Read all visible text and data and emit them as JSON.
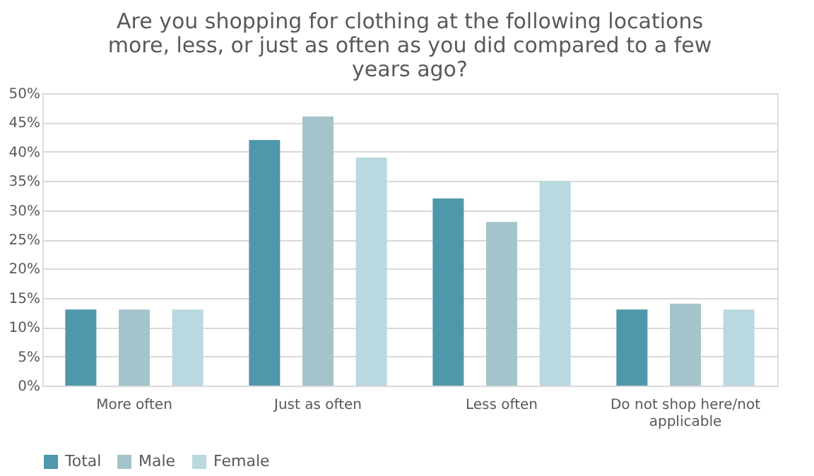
{
  "chart_data": {
    "type": "bar",
    "title": "Are you shopping for clothing at the following locations more, less, or just as often as you did compared to a few years ago?",
    "categories": [
      "More often",
      "Just as often",
      "Less often",
      "Do not shop here/not applicable"
    ],
    "series": [
      {
        "name": "Total",
        "color": "#4f97ab",
        "values": [
          13,
          42,
          32,
          13
        ]
      },
      {
        "name": "Male",
        "color": "#a5c3cb",
        "values": [
          13,
          46,
          28,
          14
        ]
      },
      {
        "name": "Female",
        "color": "#b9d8df",
        "values": [
          13,
          39,
          35,
          13
        ]
      }
    ],
    "ylim": [
      0,
      50
    ],
    "yticks": [
      {
        "value": 0,
        "label": "0%"
      },
      {
        "value": 5,
        "label": "5%"
      },
      {
        "value": 10,
        "label": "10%"
      },
      {
        "value": 15,
        "label": "15%"
      },
      {
        "value": 20,
        "label": "20%"
      },
      {
        "value": 25,
        "label": "25%"
      },
      {
        "value": 30,
        "label": "30%"
      },
      {
        "value": 35,
        "label": "35%"
      },
      {
        "value": 40,
        "label": "40%"
      },
      {
        "value": 45,
        "label": "45%"
      },
      {
        "value": 50,
        "label": "50%"
      }
    ],
    "grid": "y",
    "legend": "bottom"
  }
}
